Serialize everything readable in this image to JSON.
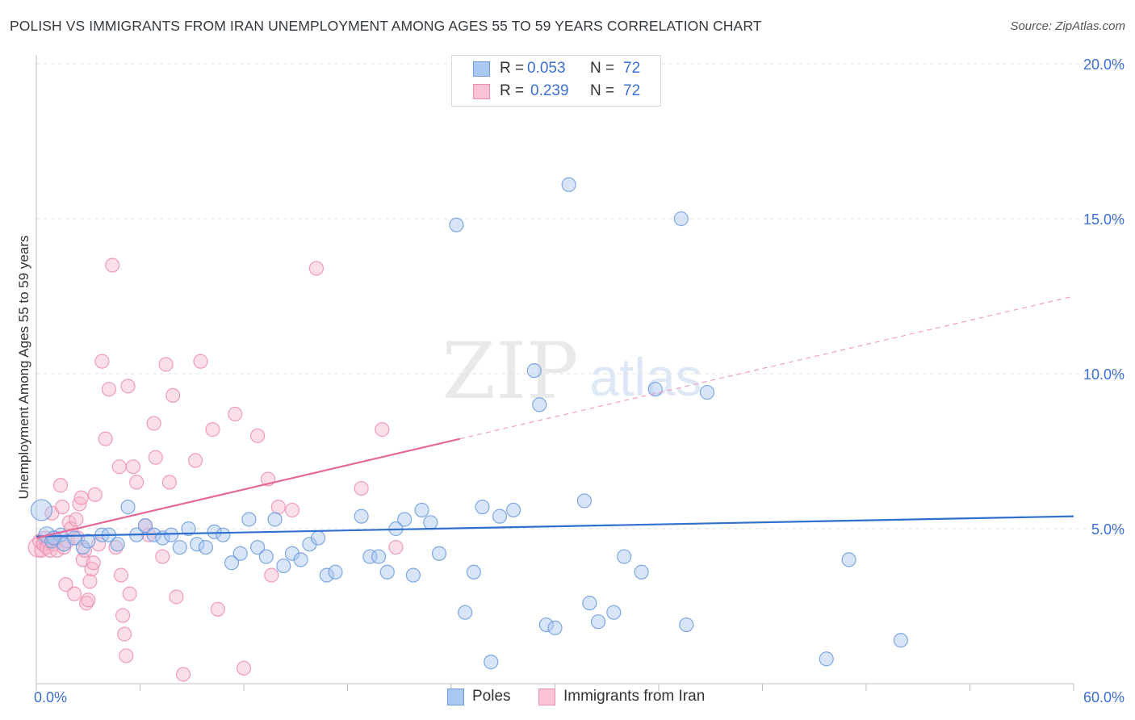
{
  "header": {
    "title": "POLISH VS IMMIGRANTS FROM IRAN UNEMPLOYMENT AMONG AGES 55 TO 59 YEARS CORRELATION CHART",
    "source": "Source: ZipAtlas.com"
  },
  "watermark": {
    "zip": "ZIP",
    "atlas": "atlas"
  },
  "legend_top": {
    "rows": [
      {
        "r_label": "R =",
        "r_value": "0.053",
        "n_label": "N =",
        "n_value": "72",
        "color": "#aac8f0",
        "border": "#6d9ee0"
      },
      {
        "r_label": "R =",
        "r_value": "0.239",
        "n_label": "N =",
        "n_value": "72",
        "color": "#f9c3d3",
        "border": "#ef8fae"
      }
    ]
  },
  "legend_bottom": {
    "items": [
      {
        "label": "Poles",
        "color": "#aac8f0",
        "border": "#6d9ee0"
      },
      {
        "label": "Immigrants from Iran",
        "color": "#f9c3d3",
        "border": "#ef8fae"
      }
    ]
  },
  "chart_data": {
    "type": "scatter",
    "title": "POLISH VS IMMIGRANTS FROM IRAN UNEMPLOYMENT AMONG AGES 55 TO 59 YEARS CORRELATION CHART",
    "xlabel": "",
    "ylabel": "Unemployment Among Ages 55 to 59 years",
    "xlim": [
      0,
      60
    ],
    "ylim": [
      0,
      20
    ],
    "x_tick_labels": [
      "0.0%",
      "60.0%"
    ],
    "y_ticks": [
      5,
      10,
      15,
      20
    ],
    "y_tick_labels": [
      "5.0%",
      "10.0%",
      "15.0%",
      "20.0%"
    ],
    "grid": true,
    "legend_position": "top-center",
    "colors": {
      "poles": "#5b93db",
      "iran": "#ec7aa0",
      "poles_line": "#2f6fce",
      "iran_line": "#e5689a"
    },
    "series": [
      {
        "name": "Poles",
        "r": 0.053,
        "n": 72,
        "trend": {
          "x": [
            0,
            60
          ],
          "y": [
            4.75,
            5.4
          ]
        },
        "points": [
          [
            0.3,
            5.6
          ],
          [
            0.6,
            4.8
          ],
          [
            0.9,
            4.6
          ],
          [
            1.4,
            4.8
          ],
          [
            1.6,
            4.5
          ],
          [
            2.2,
            4.7
          ],
          [
            2.7,
            4.4
          ],
          [
            3.0,
            4.6
          ],
          [
            3.8,
            4.8
          ],
          [
            4.2,
            4.8
          ],
          [
            4.7,
            4.5
          ],
          [
            5.3,
            5.7
          ],
          [
            5.8,
            4.8
          ],
          [
            6.3,
            5.1
          ],
          [
            6.8,
            4.8
          ],
          [
            7.3,
            4.7
          ],
          [
            7.8,
            4.8
          ],
          [
            8.3,
            4.4
          ],
          [
            8.8,
            5.0
          ],
          [
            9.3,
            4.5
          ],
          [
            9.8,
            4.4
          ],
          [
            10.3,
            4.9
          ],
          [
            10.8,
            4.8
          ],
          [
            11.3,
            3.9
          ],
          [
            11.8,
            4.2
          ],
          [
            12.3,
            5.3
          ],
          [
            12.8,
            4.4
          ],
          [
            13.3,
            4.1
          ],
          [
            13.8,
            5.3
          ],
          [
            14.3,
            3.8
          ],
          [
            14.8,
            4.2
          ],
          [
            15.3,
            4.0
          ],
          [
            15.8,
            4.5
          ],
          [
            16.3,
            4.7
          ],
          [
            16.8,
            3.5
          ],
          [
            17.3,
            3.6
          ],
          [
            18.8,
            5.4
          ],
          [
            19.3,
            4.1
          ],
          [
            19.8,
            4.1
          ],
          [
            20.3,
            3.6
          ],
          [
            20.8,
            5.0
          ],
          [
            21.3,
            5.3
          ],
          [
            21.8,
            3.5
          ],
          [
            22.3,
            5.6
          ],
          [
            22.8,
            5.2
          ],
          [
            23.3,
            4.2
          ],
          [
            24.3,
            14.8
          ],
          [
            24.8,
            2.3
          ],
          [
            25.3,
            3.6
          ],
          [
            25.8,
            5.7
          ],
          [
            26.3,
            0.7
          ],
          [
            26.8,
            5.4
          ],
          [
            27.6,
            5.6
          ],
          [
            28.8,
            10.1
          ],
          [
            29.1,
            9.0
          ],
          [
            29.5,
            1.9
          ],
          [
            30.0,
            1.8
          ],
          [
            30.8,
            16.1
          ],
          [
            31.7,
            5.9
          ],
          [
            32.0,
            2.6
          ],
          [
            32.5,
            2.0
          ],
          [
            33.4,
            2.3
          ],
          [
            34.0,
            4.1
          ],
          [
            35.0,
            3.6
          ],
          [
            35.8,
            9.5
          ],
          [
            37.3,
            15.0
          ],
          [
            37.6,
            1.9
          ],
          [
            38.8,
            9.4
          ],
          [
            45.7,
            0.8
          ],
          [
            47.0,
            4.0
          ],
          [
            50.0,
            1.4
          ],
          [
            1.0,
            4.7
          ]
        ]
      },
      {
        "name": "Immigrants from Iran",
        "r": 0.239,
        "n": 72,
        "trend": {
          "x": [
            0,
            24.5
          ],
          "y": [
            4.7,
            7.9
          ]
        },
        "trend_extension": {
          "x": [
            24.5,
            60
          ],
          "y": [
            7.9,
            12.5
          ]
        },
        "points": [
          [
            0.1,
            4.4
          ],
          [
            0.2,
            4.6
          ],
          [
            0.3,
            4.3
          ],
          [
            0.4,
            4.5
          ],
          [
            0.5,
            4.7
          ],
          [
            0.6,
            4.4
          ],
          [
            0.7,
            4.6
          ],
          [
            0.8,
            4.3
          ],
          [
            0.9,
            5.5
          ],
          [
            1.0,
            4.5
          ],
          [
            1.1,
            4.7
          ],
          [
            1.2,
            4.3
          ],
          [
            1.4,
            6.4
          ],
          [
            1.5,
            5.7
          ],
          [
            1.6,
            4.4
          ],
          [
            1.7,
            3.2
          ],
          [
            1.8,
            4.6
          ],
          [
            1.9,
            5.2
          ],
          [
            2.0,
            5.0
          ],
          [
            2.2,
            2.9
          ],
          [
            2.3,
            5.3
          ],
          [
            2.4,
            4.7
          ],
          [
            2.5,
            5.8
          ],
          [
            2.6,
            6.0
          ],
          [
            2.7,
            4.0
          ],
          [
            2.8,
            4.3
          ],
          [
            2.9,
            2.6
          ],
          [
            3.0,
            2.7
          ],
          [
            3.1,
            3.3
          ],
          [
            3.2,
            3.7
          ],
          [
            3.3,
            3.9
          ],
          [
            3.4,
            6.1
          ],
          [
            3.6,
            4.5
          ],
          [
            3.8,
            10.4
          ],
          [
            4.0,
            7.9
          ],
          [
            4.2,
            9.5
          ],
          [
            4.4,
            13.5
          ],
          [
            4.6,
            4.4
          ],
          [
            4.8,
            7.0
          ],
          [
            4.9,
            3.5
          ],
          [
            5.0,
            2.2
          ],
          [
            5.1,
            1.6
          ],
          [
            5.2,
            0.9
          ],
          [
            5.3,
            9.6
          ],
          [
            5.4,
            2.9
          ],
          [
            5.6,
            7.0
          ],
          [
            5.8,
            6.5
          ],
          [
            6.3,
            5.1
          ],
          [
            6.5,
            4.8
          ],
          [
            6.8,
            8.4
          ],
          [
            6.9,
            7.3
          ],
          [
            7.3,
            4.1
          ],
          [
            7.5,
            10.3
          ],
          [
            7.7,
            6.5
          ],
          [
            7.9,
            9.3
          ],
          [
            8.1,
            2.8
          ],
          [
            8.5,
            0.3
          ],
          [
            9.2,
            7.2
          ],
          [
            9.5,
            10.4
          ],
          [
            10.2,
            8.2
          ],
          [
            10.5,
            2.4
          ],
          [
            11.5,
            8.7
          ],
          [
            12.0,
            0.5
          ],
          [
            12.8,
            8.0
          ],
          [
            13.4,
            6.6
          ],
          [
            13.6,
            3.5
          ],
          [
            14.0,
            5.7
          ],
          [
            14.8,
            5.6
          ],
          [
            16.2,
            13.4
          ],
          [
            18.8,
            6.3
          ],
          [
            20.0,
            8.2
          ],
          [
            20.8,
            4.4
          ]
        ]
      }
    ]
  }
}
